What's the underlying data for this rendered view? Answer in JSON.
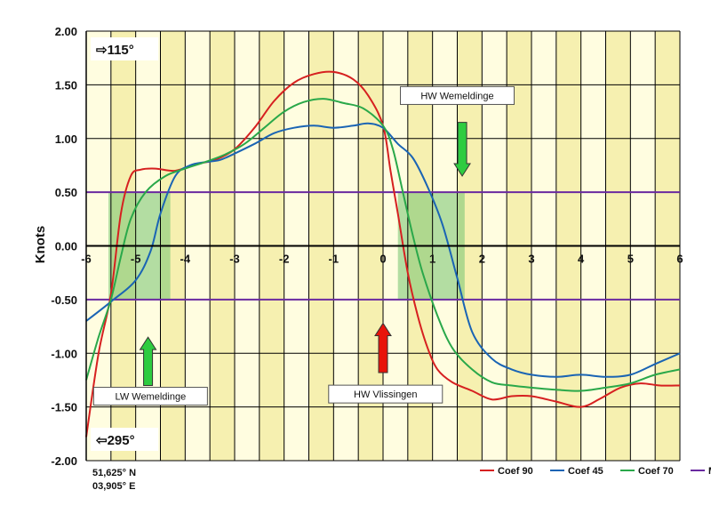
{
  "chart_data": {
    "type": "line",
    "title": "",
    "xlabel": "",
    "ylabel": "Knots",
    "xlim": [
      -6,
      6
    ],
    "ylim": [
      -2,
      2
    ],
    "x_ticks": [
      -6,
      -5,
      -4,
      -3,
      -2,
      -1,
      0,
      1,
      2,
      3,
      4,
      5,
      6
    ],
    "y_ticks": [
      "2.00",
      "1.50",
      "1.00",
      "0.50",
      "0.00",
      "-0.50",
      "-1.00",
      "-1.50",
      "-2.00"
    ],
    "y_tick_values": [
      2,
      1.5,
      1,
      0.5,
      0,
      -0.5,
      -1,
      -1.5,
      -2
    ],
    "grid": true,
    "legend_position": "bottom-right",
    "series": [
      {
        "name": "Coef 90",
        "color": "#d62020",
        "points": [
          [
            -6,
            -1.78
          ],
          [
            -5.75,
            -1.0
          ],
          [
            -5.5,
            -0.45
          ],
          [
            -5.3,
            0.3
          ],
          [
            -5.1,
            0.65
          ],
          [
            -4.9,
            0.71
          ],
          [
            -4.6,
            0.72
          ],
          [
            -4.2,
            0.7
          ],
          [
            -3.8,
            0.76
          ],
          [
            -3.4,
            0.8
          ],
          [
            -3.0,
            0.9
          ],
          [
            -2.6,
            1.1
          ],
          [
            -2.2,
            1.35
          ],
          [
            -1.8,
            1.52
          ],
          [
            -1.4,
            1.6
          ],
          [
            -1.0,
            1.62
          ],
          [
            -0.6,
            1.55
          ],
          [
            -0.3,
            1.4
          ],
          [
            0.0,
            1.12
          ],
          [
            0.15,
            0.7
          ],
          [
            0.3,
            0.3
          ],
          [
            0.5,
            -0.25
          ],
          [
            0.7,
            -0.65
          ],
          [
            0.9,
            -0.95
          ],
          [
            1.1,
            -1.15
          ],
          [
            1.4,
            -1.27
          ],
          [
            1.8,
            -1.35
          ],
          [
            2.2,
            -1.43
          ],
          [
            2.6,
            -1.4
          ],
          [
            3.0,
            -1.4
          ],
          [
            3.5,
            -1.45
          ],
          [
            4.0,
            -1.5
          ],
          [
            4.4,
            -1.42
          ],
          [
            4.8,
            -1.32
          ],
          [
            5.2,
            -1.28
          ],
          [
            5.6,
            -1.3
          ],
          [
            6.0,
            -1.3
          ]
        ]
      },
      {
        "name": "Coef 45",
        "color": "#1a64b4",
        "points": [
          [
            -6,
            -0.7
          ],
          [
            -5.5,
            -0.52
          ],
          [
            -5.0,
            -0.32
          ],
          [
            -4.7,
            -0.05
          ],
          [
            -4.5,
            0.3
          ],
          [
            -4.2,
            0.65
          ],
          [
            -3.9,
            0.75
          ],
          [
            -3.6,
            0.78
          ],
          [
            -3.3,
            0.8
          ],
          [
            -3.0,
            0.86
          ],
          [
            -2.6,
            0.95
          ],
          [
            -2.2,
            1.05
          ],
          [
            -1.8,
            1.1
          ],
          [
            -1.4,
            1.12
          ],
          [
            -1.0,
            1.1
          ],
          [
            -0.6,
            1.12
          ],
          [
            -0.3,
            1.14
          ],
          [
            0.0,
            1.1
          ],
          [
            0.3,
            0.95
          ],
          [
            0.6,
            0.82
          ],
          [
            0.9,
            0.55
          ],
          [
            1.2,
            0.2
          ],
          [
            1.5,
            -0.3
          ],
          [
            1.8,
            -0.8
          ],
          [
            2.2,
            -1.05
          ],
          [
            2.6,
            -1.15
          ],
          [
            3.0,
            -1.2
          ],
          [
            3.5,
            -1.22
          ],
          [
            4.0,
            -1.2
          ],
          [
            4.5,
            -1.22
          ],
          [
            5.0,
            -1.2
          ],
          [
            5.5,
            -1.1
          ],
          [
            6.0,
            -1.0
          ]
        ]
      },
      {
        "name": "Coef 70",
        "color": "#2aa84a",
        "points": [
          [
            -6,
            -1.25
          ],
          [
            -5.75,
            -0.85
          ],
          [
            -5.5,
            -0.5
          ],
          [
            -5.3,
            -0.1
          ],
          [
            -5.1,
            0.25
          ],
          [
            -4.8,
            0.5
          ],
          [
            -4.4,
            0.65
          ],
          [
            -4.0,
            0.72
          ],
          [
            -3.6,
            0.78
          ],
          [
            -3.2,
            0.85
          ],
          [
            -2.8,
            0.95
          ],
          [
            -2.4,
            1.1
          ],
          [
            -2.0,
            1.25
          ],
          [
            -1.6,
            1.34
          ],
          [
            -1.2,
            1.37
          ],
          [
            -0.8,
            1.33
          ],
          [
            -0.4,
            1.28
          ],
          [
            0.0,
            1.12
          ],
          [
            0.2,
            0.9
          ],
          [
            0.4,
            0.5
          ],
          [
            0.6,
            0.1
          ],
          [
            0.8,
            -0.25
          ],
          [
            1.1,
            -0.65
          ],
          [
            1.4,
            -0.95
          ],
          [
            1.8,
            -1.15
          ],
          [
            2.2,
            -1.27
          ],
          [
            2.6,
            -1.3
          ],
          [
            3.0,
            -1.32
          ],
          [
            3.5,
            -1.34
          ],
          [
            4.0,
            -1.35
          ],
          [
            4.5,
            -1.32
          ],
          [
            5.0,
            -1.28
          ],
          [
            5.5,
            -1.2
          ],
          [
            6.0,
            -1.15
          ]
        ]
      },
      {
        "name": "Max",
        "color": "#6a2aa0",
        "points": []
      }
    ],
    "max_lines": [
      0.5,
      -0.5
    ],
    "shaded_boxes": [
      {
        "x0": -5.55,
        "x1": -4.3,
        "y0": -0.5,
        "y1": 0.5
      },
      {
        "x0": 0.3,
        "x1": 1.65,
        "y0": -0.5,
        "y1": 0.5
      }
    ],
    "column_shading_step": 0.5,
    "annotations": [
      {
        "text": "HW Wemeldinge",
        "x": 1.5,
        "y": 1.4,
        "arrow": "down",
        "arrow_color": "#2ecc40",
        "arrow_x": 1.6,
        "arrow_from": 1.15,
        "arrow_to": 0.65
      },
      {
        "text": "LW Wemeldinge",
        "x": -4.7,
        "y": -1.4,
        "arrow": "up",
        "arrow_color": "#2ecc40",
        "arrow_x": -4.75,
        "arrow_from": -1.3,
        "arrow_to": -0.85
      },
      {
        "text": "HW Vlissingen",
        "x": 0.05,
        "y": -1.38,
        "arrow": "up",
        "arrow_color": "#e8140a",
        "arrow_x": 0.0,
        "arrow_from": -1.18,
        "arrow_to": -0.72
      }
    ],
    "direction_labels": {
      "top": "⇨115°",
      "bottom": "⇦295°"
    },
    "coordinates": {
      "lat": "51,625° N",
      "lon": "03,905° E"
    },
    "colors": {
      "plot_bg_light": "#fffde0",
      "plot_bg_dark": "#f6f0b0",
      "shaded_box": "#80c878",
      "grid": "#000000",
      "max_line": "#6a2aa0"
    }
  }
}
